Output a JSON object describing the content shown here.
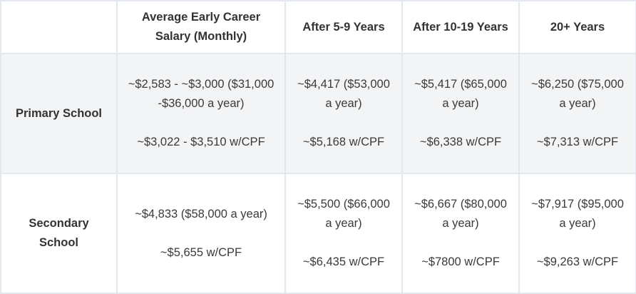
{
  "table": {
    "headers": [
      "",
      "Average Early Career Salary (Monthly)",
      "After 5-9 Years",
      "After 10-19 Years",
      "20+ Years"
    ],
    "rows": [
      {
        "label": "Primary School",
        "cells": [
          {
            "salary": "~$2,583 - ~$3,000 ($31,000 -$36,000 a year)",
            "cpf": "~$3,022 - $3,510 w/CPF"
          },
          {
            "salary": "~$4,417 ($53,000 a year)",
            "cpf": "~$5,168 w/CPF"
          },
          {
            "salary": "~$5,417 ($65,000 a year)",
            "cpf": "~$6,338 w/CPF"
          },
          {
            "salary": "~$6,250 ($75,000 a year)",
            "cpf": "~$7,313 w/CPF"
          }
        ]
      },
      {
        "label": "Secondary School",
        "cells": [
          {
            "salary": "~$4,833 ($58,000 a year)",
            "cpf": "~$5,655 w/CPF"
          },
          {
            "salary": "~$5,500 ($66,000 a year)",
            "cpf": "~$6,435 w/CPF"
          },
          {
            "salary": "~$6,667 ($80,000 a year)",
            "cpf": "~$7800 w/CPF"
          },
          {
            "salary": "~$7,917 ($95,000 a year)",
            "cpf": "~$9,263 w/CPF"
          }
        ]
      }
    ]
  }
}
